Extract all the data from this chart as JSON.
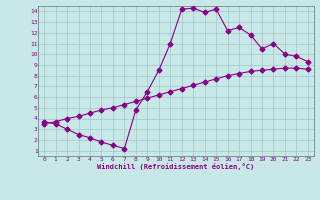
{
  "xlabel": "Windchill (Refroidissement éolien,°C)",
  "bg_color": "#c8e8e8",
  "grid_color": "#a8cccc",
  "line_color": "#880088",
  "xlim": [
    -0.5,
    23.5
  ],
  "ylim": [
    0.5,
    14.5
  ],
  "xticks": [
    0,
    1,
    2,
    3,
    4,
    5,
    6,
    7,
    8,
    9,
    10,
    11,
    12,
    13,
    14,
    15,
    16,
    17,
    18,
    19,
    20,
    21,
    22,
    23
  ],
  "yticks": [
    1,
    2,
    3,
    4,
    5,
    6,
    7,
    8,
    9,
    10,
    11,
    12,
    13,
    14
  ],
  "curve1_x": [
    0,
    1,
    2,
    3,
    4,
    5,
    6,
    7,
    8,
    9,
    10,
    11,
    12,
    13,
    14,
    15,
    16,
    17,
    18,
    19,
    20,
    21,
    22,
    23
  ],
  "curve1_y": [
    3.7,
    3.5,
    3.0,
    2.5,
    2.2,
    1.8,
    1.5,
    1.2,
    4.8,
    6.5,
    8.5,
    11.0,
    14.2,
    14.3,
    13.9,
    14.2,
    12.2,
    12.5,
    11.8,
    10.5,
    11.0,
    10.0,
    9.8,
    9.3
  ],
  "curve2_x": [
    0,
    1,
    2,
    3,
    4,
    5,
    6,
    7,
    8,
    9,
    10,
    11,
    12,
    13,
    14,
    15,
    16,
    17,
    18,
    19,
    20,
    21,
    22,
    23
  ],
  "curve2_y": [
    3.5,
    3.7,
    4.0,
    4.2,
    4.5,
    4.8,
    5.0,
    5.3,
    5.6,
    5.9,
    6.2,
    6.5,
    6.8,
    7.1,
    7.4,
    7.7,
    8.0,
    8.2,
    8.4,
    8.5,
    8.6,
    8.7,
    8.7,
    8.6
  ],
  "markersize": 2.5
}
